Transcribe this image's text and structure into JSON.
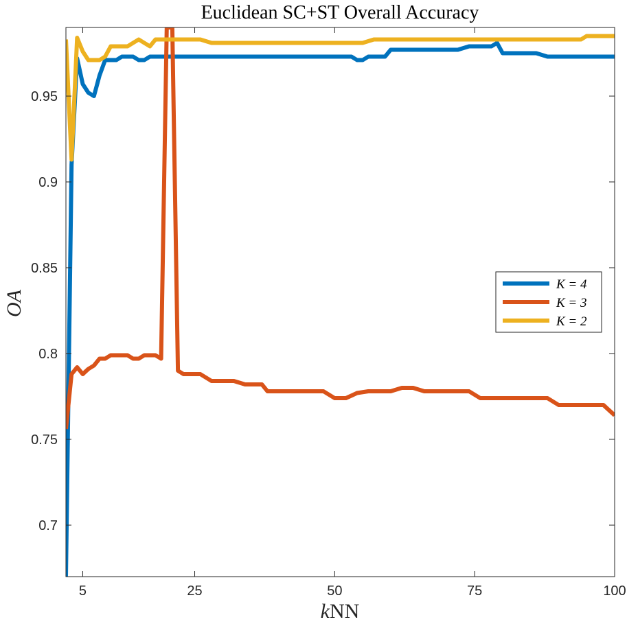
{
  "chart_data": {
    "type": "line",
    "title": "Euclidean SC+ST Overall Accuracy",
    "xlabel": "kNN",
    "ylabel": "OA",
    "xlim": [
      2,
      100
    ],
    "ylim": [
      0.67,
      0.99
    ],
    "xticks": [
      5,
      25,
      50,
      75,
      100
    ],
    "yticks": [
      0.7,
      0.75,
      0.8,
      0.85,
      0.9,
      0.95
    ],
    "grid": false,
    "legend_position": "right",
    "series": [
      {
        "name": "K = 4",
        "color": "#0072BD",
        "x": [
          2,
          3,
          4,
          5,
          6,
          7,
          8,
          9,
          10,
          11,
          12,
          13,
          14,
          15,
          16,
          17,
          18,
          19,
          20,
          21,
          22,
          24,
          26,
          28,
          30,
          35,
          40,
          45,
          50,
          53,
          54,
          55,
          56,
          57,
          58,
          59,
          60,
          62,
          65,
          68,
          70,
          72,
          74,
          76,
          78,
          79,
          80,
          82,
          84,
          86,
          88,
          90,
          92,
          95,
          98,
          100
        ],
        "values": [
          0.67,
          0.91,
          0.972,
          0.957,
          0.952,
          0.95,
          0.962,
          0.971,
          0.971,
          0.971,
          0.973,
          0.973,
          0.973,
          0.971,
          0.971,
          0.973,
          0.973,
          0.973,
          0.973,
          0.973,
          0.973,
          0.973,
          0.973,
          0.973,
          0.973,
          0.973,
          0.973,
          0.973,
          0.973,
          0.973,
          0.971,
          0.971,
          0.973,
          0.973,
          0.973,
          0.973,
          0.977,
          0.977,
          0.977,
          0.977,
          0.977,
          0.977,
          0.979,
          0.979,
          0.979,
          0.981,
          0.975,
          0.975,
          0.975,
          0.975,
          0.973,
          0.973,
          0.973,
          0.973,
          0.973,
          0.973
        ]
      },
      {
        "name": "K = 3",
        "color": "#D95319",
        "x": [
          2,
          3,
          4,
          5,
          6,
          7,
          8,
          9,
          10,
          11,
          12,
          13,
          14,
          15,
          16,
          17,
          18,
          19,
          20,
          21,
          22,
          23,
          24,
          26,
          28,
          30,
          32,
          34,
          36,
          37,
          38,
          40,
          42,
          44,
          46,
          48,
          50,
          52,
          54,
          56,
          58,
          60,
          62,
          64,
          66,
          68,
          70,
          72,
          74,
          76,
          78,
          80,
          82,
          84,
          86,
          88,
          90,
          92,
          94,
          96,
          98,
          100
        ],
        "values": [
          0.756,
          0.788,
          0.792,
          0.788,
          0.791,
          0.793,
          0.797,
          0.797,
          0.799,
          0.799,
          0.799,
          0.799,
          0.797,
          0.797,
          0.799,
          0.799,
          0.799,
          0.797,
          0.99,
          0.99,
          0.79,
          0.788,
          0.788,
          0.788,
          0.784,
          0.784,
          0.784,
          0.782,
          0.782,
          0.782,
          0.778,
          0.778,
          0.778,
          0.778,
          0.778,
          0.778,
          0.774,
          0.774,
          0.777,
          0.778,
          0.778,
          0.778,
          0.78,
          0.78,
          0.778,
          0.778,
          0.778,
          0.778,
          0.778,
          0.774,
          0.774,
          0.774,
          0.774,
          0.774,
          0.774,
          0.774,
          0.77,
          0.77,
          0.77,
          0.77,
          0.77,
          0.764
        ]
      },
      {
        "name": "K = 2",
        "color": "#EDB120",
        "x": [
          2,
          3,
          4,
          5,
          6,
          7,
          8,
          9,
          10,
          11,
          12,
          13,
          14,
          15,
          16,
          17,
          18,
          20,
          22,
          24,
          26,
          28,
          30,
          35,
          40,
          45,
          50,
          55,
          57,
          60,
          65,
          70,
          75,
          80,
          85,
          90,
          94,
          95,
          97,
          100
        ],
        "values": [
          0.983,
          0.913,
          0.984,
          0.976,
          0.971,
          0.971,
          0.971,
          0.973,
          0.979,
          0.979,
          0.979,
          0.979,
          0.981,
          0.983,
          0.981,
          0.979,
          0.983,
          0.983,
          0.983,
          0.983,
          0.983,
          0.981,
          0.981,
          0.981,
          0.981,
          0.981,
          0.981,
          0.981,
          0.983,
          0.983,
          0.983,
          0.983,
          0.983,
          0.983,
          0.983,
          0.983,
          0.983,
          0.985,
          0.985,
          0.985
        ]
      }
    ]
  }
}
